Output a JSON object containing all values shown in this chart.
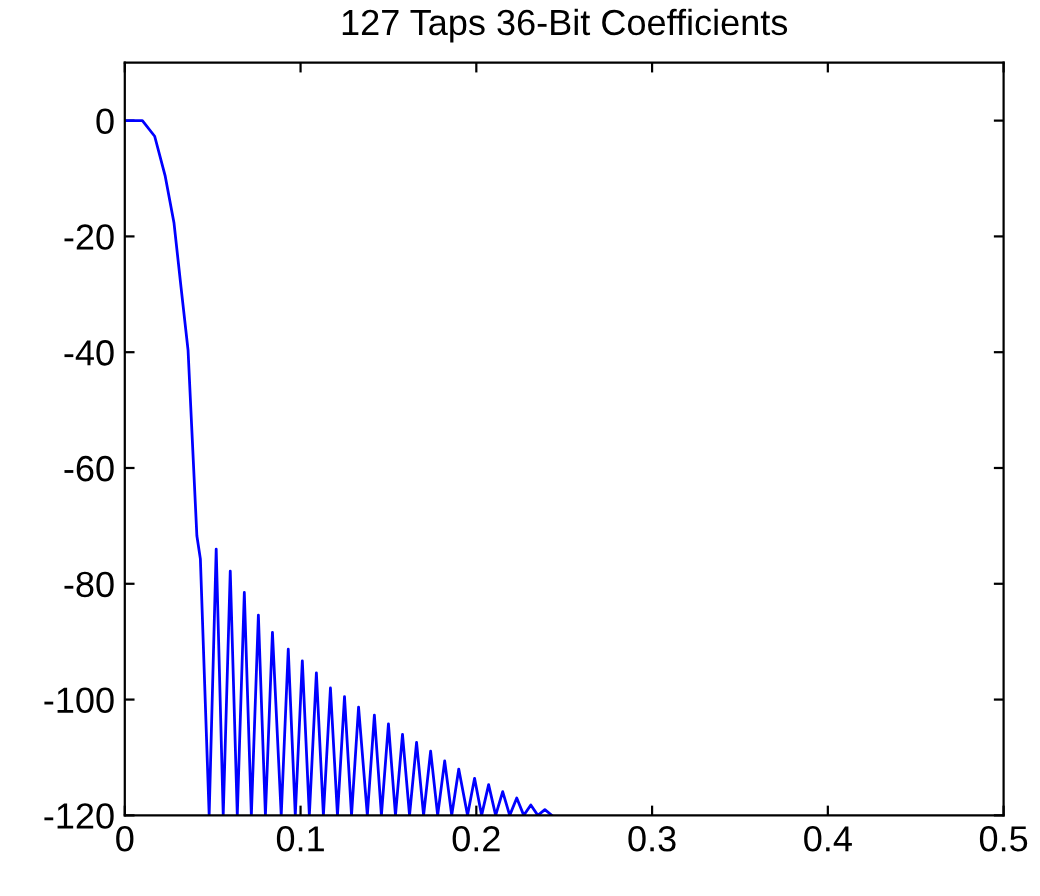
{
  "chart_data": {
    "type": "line",
    "title": "127 Taps 36-Bit Coefficients",
    "x": [
      0,
      0.01,
      0.017,
      0.023,
      0.028,
      0.032,
      0.036,
      0.038,
      0.041,
      0.043,
      0.048,
      0.052,
      0.056,
      0.06,
      0.064,
      0.068,
      0.072,
      0.076,
      0.08,
      0.084,
      0.089,
      0.093,
      0.097,
      0.101,
      0.105,
      0.109,
      0.113,
      0.117,
      0.121,
      0.125,
      0.129,
      0.133,
      0.138,
      0.142,
      0.146,
      0.15,
      0.154,
      0.158,
      0.162,
      0.166,
      0.17,
      0.174,
      0.178,
      0.182,
      0.186,
      0.19,
      0.195,
      0.199,
      0.203,
      0.207,
      0.211,
      0.215,
      0.219,
      0.223,
      0.227,
      0.231,
      0.235,
      0.239,
      0.243
    ],
    "series": [
      {
        "color": "#0000ff",
        "values": [
          0,
          0,
          -2.7,
          -9.6,
          -17.7,
          -28.8,
          -39.7,
          -52.5,
          -71.7,
          -75.7,
          -120,
          -74.0,
          -120,
          -77.8,
          -120,
          -81.5,
          -120,
          -85.4,
          -120,
          -88.4,
          -120,
          -91.3,
          -120,
          -93.3,
          -120,
          -95.4,
          -120,
          -98.0,
          -120,
          -99.5,
          -120,
          -101.3,
          -120,
          -102.7,
          -120,
          -104.2,
          -120,
          -106.0,
          -120,
          -107.4,
          -120,
          -108.9,
          -120,
          -110.6,
          -120,
          -112.0,
          -120,
          -113.6,
          -120,
          -114.7,
          -120,
          -115.9,
          -120,
          -117.0,
          -120,
          -118.2,
          -120,
          -119.0,
          -120
        ]
      }
    ],
    "xlim": [
      0,
      0.5
    ],
    "ylim": [
      -120,
      10
    ],
    "xticks": [
      0,
      0.1,
      0.2,
      0.3,
      0.4,
      0.5
    ],
    "yticks": [
      -120,
      -100,
      -80,
      -60,
      -40,
      -20,
      0
    ],
    "line_style": "solid"
  }
}
